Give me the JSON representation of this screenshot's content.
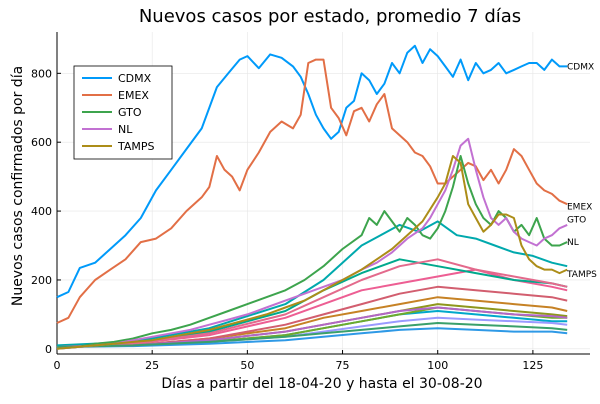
{
  "chart_data": {
    "type": "line",
    "title": "Nuevos casos por estado, promedio 7 días",
    "xlabel": "Días a partir del 18-04-20 y hasta el 30-08-20",
    "ylabel": "Nuevos casos confirmados por día",
    "xlim": [
      0,
      140
    ],
    "ylim": [
      -15,
      920
    ],
    "xticks": [
      0,
      25,
      50,
      75,
      100,
      125
    ],
    "yticks": [
      0,
      200,
      400,
      600,
      800
    ],
    "xtick_labels": [
      "0",
      "25",
      "50",
      "75",
      "100",
      "125"
    ],
    "ytick_labels": [
      "0",
      "200",
      "400",
      "600",
      "800"
    ],
    "grid": true,
    "legend_position": "top-left",
    "series": [
      {
        "name": "CDMX",
        "color": "#009AFA",
        "end_label": "CDMX",
        "x": [
          0,
          3,
          6,
          10,
          14,
          18,
          22,
          26,
          30,
          34,
          38,
          42,
          45,
          48,
          50,
          53,
          56,
          59,
          62,
          64,
          66,
          68,
          70,
          72,
          74,
          76,
          78,
          80,
          82,
          84,
          86,
          88,
          90,
          92,
          94,
          96,
          98,
          100,
          102,
          104,
          106,
          108,
          110,
          112,
          114,
          116,
          118,
          120,
          122,
          124,
          126,
          128,
          130,
          132,
          134
        ],
        "y": [
          150,
          165,
          235,
          250,
          290,
          330,
          380,
          460,
          520,
          580,
          640,
          760,
          800,
          840,
          850,
          815,
          855,
          845,
          820,
          790,
          740,
          680,
          640,
          610,
          630,
          700,
          720,
          800,
          780,
          740,
          770,
          830,
          800,
          860,
          880,
          830,
          870,
          850,
          820,
          790,
          840,
          780,
          830,
          800,
          810,
          830,
          800,
          810,
          820,
          830,
          830,
          810,
          840,
          820,
          820
        ]
      },
      {
        "name": "EMEX",
        "color": "#E26F46",
        "end_label": "EMEX",
        "x": [
          0,
          3,
          6,
          10,
          14,
          18,
          22,
          26,
          30,
          34,
          38,
          40,
          42,
          44,
          46,
          48,
          50,
          53,
          56,
          59,
          62,
          64,
          66,
          68,
          70,
          72,
          74,
          76,
          78,
          80,
          82,
          84,
          86,
          88,
          90,
          92,
          94,
          96,
          98,
          100,
          102,
          104,
          106,
          108,
          110,
          112,
          114,
          116,
          118,
          120,
          122,
          124,
          126,
          128,
          130,
          132,
          134
        ],
        "y": [
          75,
          90,
          150,
          200,
          230,
          260,
          310,
          320,
          350,
          400,
          440,
          470,
          560,
          520,
          500,
          460,
          520,
          570,
          630,
          660,
          640,
          680,
          830,
          840,
          840,
          700,
          670,
          620,
          690,
          700,
          660,
          710,
          740,
          640,
          620,
          600,
          570,
          560,
          530,
          480,
          480,
          500,
          520,
          540,
          530,
          490,
          520,
          480,
          520,
          580,
          560,
          520,
          480,
          460,
          450,
          430,
          420
        ]
      },
      {
        "name": "GTO",
        "color": "#3DA44D",
        "end_label": "GTO",
        "x": [
          0,
          5,
          10,
          15,
          20,
          25,
          30,
          35,
          40,
          45,
          50,
          55,
          60,
          65,
          70,
          75,
          80,
          82,
          84,
          86,
          88,
          90,
          92,
          94,
          96,
          98,
          100,
          102,
          104,
          106,
          108,
          110,
          112,
          114,
          116,
          118,
          120,
          122,
          124,
          126,
          128,
          130,
          132,
          134
        ],
        "y": [
          0,
          5,
          15,
          20,
          30,
          45,
          55,
          70,
          90,
          110,
          130,
          150,
          170,
          200,
          240,
          290,
          330,
          380,
          360,
          400,
          370,
          340,
          380,
          360,
          330,
          320,
          350,
          400,
          470,
          560,
          480,
          420,
          380,
          360,
          400,
          380,
          340,
          360,
          330,
          380,
          320,
          300,
          300,
          310
        ]
      },
      {
        "name": "NL",
        "color": "#C271D2",
        "end_label": "NL",
        "x": [
          0,
          5,
          10,
          15,
          20,
          25,
          30,
          35,
          40,
          45,
          50,
          55,
          60,
          65,
          70,
          75,
          80,
          84,
          88,
          92,
          96,
          98,
          100,
          102,
          104,
          106,
          108,
          110,
          112,
          114,
          116,
          118,
          120,
          122,
          124,
          126,
          128,
          130,
          132,
          134
        ],
        "y": [
          0,
          5,
          10,
          15,
          25,
          35,
          45,
          55,
          70,
          85,
          100,
          120,
          140,
          160,
          180,
          200,
          230,
          250,
          280,
          320,
          350,
          380,
          420,
          460,
          520,
          590,
          610,
          520,
          440,
          380,
          360,
          380,
          340,
          320,
          310,
          300,
          320,
          330,
          350,
          360
        ]
      },
      {
        "name": "TAMPS",
        "color": "#AC8D18",
        "end_label": "TAMPS",
        "x": [
          0,
          5,
          10,
          15,
          20,
          25,
          30,
          35,
          40,
          45,
          50,
          55,
          60,
          65,
          70,
          75,
          80,
          84,
          88,
          92,
          96,
          100,
          102,
          104,
          106,
          108,
          110,
          112,
          114,
          116,
          118,
          120,
          122,
          124,
          126,
          128,
          130,
          132,
          134
        ],
        "y": [
          0,
          5,
          10,
          15,
          20,
          25,
          35,
          45,
          55,
          70,
          85,
          100,
          120,
          140,
          170,
          200,
          230,
          260,
          290,
          330,
          370,
          440,
          480,
          560,
          540,
          420,
          380,
          340,
          360,
          390,
          390,
          380,
          300,
          260,
          240,
          230,
          230,
          220,
          230
        ]
      },
      {
        "name": "",
        "color": "#00A9AD",
        "x": [
          0,
          20,
          40,
          60,
          70,
          80,
          85,
          90,
          95,
          100,
          105,
          110,
          115,
          120,
          125,
          130,
          134
        ],
        "y": [
          10,
          20,
          60,
          130,
          200,
          300,
          330,
          360,
          340,
          370,
          330,
          320,
          300,
          280,
          270,
          250,
          240
        ]
      },
      {
        "name": "",
        "color": "#ED5E93",
        "x": [
          0,
          20,
          40,
          60,
          70,
          80,
          90,
          100,
          110,
          120,
          130,
          134
        ],
        "y": [
          5,
          15,
          40,
          90,
          130,
          170,
          190,
          210,
          230,
          200,
          180,
          170
        ]
      },
      {
        "name": "",
        "color": "#C68225",
        "x": [
          0,
          20,
          40,
          60,
          70,
          80,
          90,
          100,
          110,
          120,
          130,
          134
        ],
        "y": [
          5,
          10,
          30,
          60,
          90,
          110,
          130,
          150,
          140,
          130,
          120,
          110
        ]
      },
      {
        "name": "",
        "color": "#00A98D",
        "x": [
          0,
          20,
          40,
          60,
          70,
          80,
          90,
          100,
          110,
          120,
          130,
          134
        ],
        "y": [
          5,
          15,
          50,
          110,
          170,
          220,
          260,
          240,
          220,
          200,
          190,
          180
        ]
      },
      {
        "name": "",
        "color": "#8E971D",
        "x": [
          0,
          20,
          40,
          60,
          70,
          80,
          90,
          100,
          110,
          120,
          130,
          134
        ],
        "y": [
          5,
          10,
          25,
          50,
          70,
          90,
          110,
          130,
          120,
          110,
          100,
          95
        ]
      },
      {
        "name": "",
        "color": "#00A8CB",
        "x": [
          0,
          20,
          40,
          60,
          70,
          80,
          90,
          100,
          110,
          120,
          130,
          134
        ],
        "y": [
          5,
          10,
          20,
          40,
          60,
          80,
          100,
          110,
          100,
          90,
          80,
          80
        ]
      },
      {
        "name": "",
        "color": "#9A9AFF",
        "x": [
          0,
          20,
          40,
          60,
          70,
          80,
          90,
          100,
          110,
          120,
          130,
          134
        ],
        "y": [
          5,
          10,
          20,
          35,
          50,
          65,
          80,
          90,
          85,
          80,
          75,
          70
        ]
      },
      {
        "name": "",
        "color": "#D25E6F",
        "x": [
          0,
          20,
          40,
          60,
          70,
          80,
          90,
          100,
          110,
          120,
          130,
          134
        ],
        "y": [
          5,
          10,
          30,
          70,
          100,
          130,
          160,
          180,
          170,
          160,
          150,
          140
        ]
      },
      {
        "name": "",
        "color": "#6FAA2B",
        "x": [
          0,
          20,
          40,
          60,
          70,
          80,
          90,
          100,
          110,
          120,
          130,
          134
        ],
        "y": [
          5,
          10,
          20,
          40,
          60,
          80,
          100,
          120,
          110,
          100,
          90,
          90
        ]
      },
      {
        "name": "",
        "color": "#2E99E6",
        "x": [
          0,
          20,
          40,
          60,
          70,
          80,
          90,
          100,
          110,
          120,
          130,
          134
        ],
        "y": [
          5,
          8,
          15,
          25,
          35,
          45,
          55,
          60,
          55,
          50,
          50,
          45
        ]
      },
      {
        "name": "",
        "color": "#E36A8C",
        "x": [
          0,
          20,
          40,
          60,
          70,
          80,
          90,
          100,
          110,
          120,
          130,
          134
        ],
        "y": [
          5,
          15,
          45,
          100,
          150,
          200,
          240,
          260,
          230,
          210,
          190,
          180
        ]
      },
      {
        "name": "",
        "color": "#B266C8",
        "x": [
          0,
          20,
          40,
          60,
          70,
          80,
          90,
          100,
          110,
          120,
          130,
          134
        ],
        "y": [
          5,
          10,
          25,
          50,
          70,
          90,
          110,
          120,
          110,
          100,
          95,
          90
        ]
      },
      {
        "name": "",
        "color": "#3AA06B",
        "x": [
          0,
          20,
          40,
          60,
          70,
          80,
          90,
          100,
          110,
          120,
          130,
          134
        ],
        "y": [
          5,
          10,
          20,
          35,
          45,
          55,
          65,
          75,
          70,
          65,
          60,
          55
        ]
      }
    ]
  }
}
